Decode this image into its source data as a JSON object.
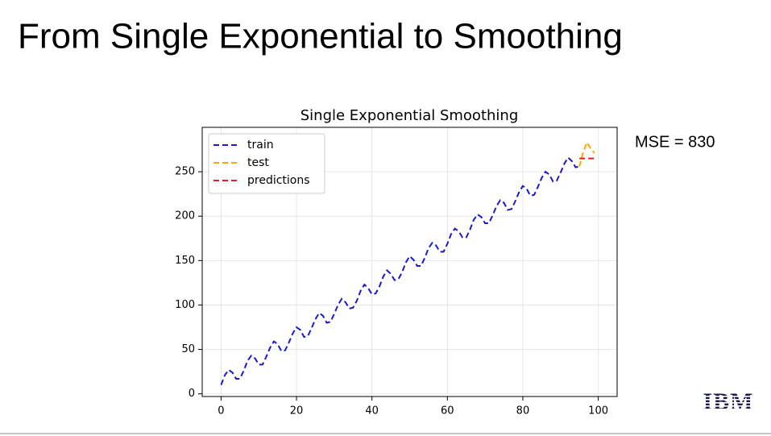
{
  "title": "From Single Exponential to Smoothing",
  "logo": "IBM",
  "chart_data": {
    "type": "line",
    "title": "Single Exponential Smoothing",
    "annotation": "MSE = 830",
    "series": [
      {
        "name": "train",
        "color": "#1a1acc",
        "x": [
          0,
          1,
          2,
          3,
          4,
          5,
          6,
          7,
          8,
          9,
          10,
          11,
          12,
          13,
          14,
          15,
          16,
          17,
          18,
          19,
          20,
          21,
          22,
          23,
          24,
          25,
          26,
          27,
          28,
          29,
          30,
          31,
          32,
          33,
          34,
          35,
          36,
          37,
          38,
          39,
          40,
          41,
          42,
          43,
          44,
          45,
          46,
          47,
          48,
          49,
          50,
          51,
          52,
          53,
          54,
          55,
          56,
          57,
          58,
          59,
          60,
          61,
          62,
          63,
          64,
          65,
          66,
          67,
          68,
          69,
          70,
          71,
          72,
          73,
          74,
          75,
          76,
          77,
          78,
          79,
          80,
          81,
          82,
          83,
          84,
          85,
          86,
          87,
          88,
          89,
          90,
          91,
          92,
          93,
          94,
          95
        ],
        "values": [
          10,
          21,
          27,
          24,
          17,
          17,
          26,
          37,
          43,
          40,
          33,
          33,
          42,
          52,
          59,
          56,
          48,
          49,
          58,
          68,
          75,
          72,
          64,
          65,
          74,
          84,
          91,
          88,
          80,
          81,
          90,
          100,
          107,
          103,
          96,
          97,
          105,
          116,
          123,
          119,
          112,
          113,
          121,
          132,
          139,
          135,
          128,
          129,
          137,
          148,
          155,
          151,
          144,
          144,
          153,
          164,
          170,
          167,
          160,
          160,
          169,
          180,
          186,
          183,
          176,
          176,
          185,
          196,
          202,
          199,
          192,
          192,
          201,
          211,
          218,
          215,
          207,
          208,
          217,
          227,
          234,
          231,
          223,
          224,
          233,
          243,
          250,
          247,
          239,
          240,
          249,
          259,
          266,
          262,
          255,
          256
        ]
      },
      {
        "name": "test",
        "color": "#ffa500",
        "x": [
          95,
          96,
          97,
          98,
          99
        ],
        "values": [
          256,
          272,
          283,
          276,
          271
        ]
      },
      {
        "name": "predictions",
        "color": "#e41a1c",
        "x": [
          95,
          96,
          97,
          98,
          99
        ],
        "values": [
          265,
          265,
          265,
          265,
          265
        ]
      }
    ],
    "xlim": [
      -5,
      105
    ],
    "xticks": [
      0,
      20,
      40,
      60,
      80,
      100
    ],
    "ylim": [
      -3,
      300
    ],
    "yticks": [
      0,
      50,
      100,
      150,
      200,
      250
    ],
    "grid": true,
    "legend": "upper left",
    "line_style": "dashed"
  }
}
